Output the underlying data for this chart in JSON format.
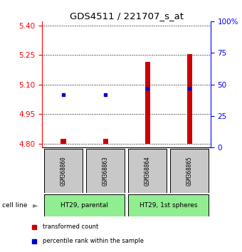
{
  "title": "GDS4511 / 221707_s_at",
  "samples": [
    "GSM368860",
    "GSM368863",
    "GSM368864",
    "GSM368865"
  ],
  "cell_lines": [
    {
      "label": "HT29, parental",
      "samples": [
        0,
        1
      ],
      "color": "#90EE90"
    },
    {
      "label": "HT29, 1st spheres",
      "samples": [
        2,
        3
      ],
      "color": "#90EE90"
    }
  ],
  "ylim_left": [
    4.78,
    5.42
  ],
  "ylim_right": [
    0,
    100
  ],
  "yticks_left": [
    4.8,
    4.95,
    5.1,
    5.25,
    5.4
  ],
  "yticks_right": [
    0,
    25,
    50,
    75,
    100
  ],
  "ytick_labels_right": [
    "0",
    "25",
    "50",
    "75",
    "100%"
  ],
  "transformed_count": {
    "bottoms": [
      4.8,
      4.8,
      4.8,
      4.8
    ],
    "tops": [
      4.825,
      4.825,
      5.215,
      5.255
    ],
    "color": "#CC0000"
  },
  "percentile_rank": {
    "values_pct": [
      42,
      42,
      47,
      47
    ],
    "color": "#0000CC"
  },
  "sample_box_color": "#C8C8C8",
  "legend_items": [
    {
      "label": "transformed count",
      "color": "#CC0000"
    },
    {
      "label": "percentile rank within the sample",
      "color": "#0000CC"
    }
  ],
  "cell_line_label": "cell line",
  "figsize": [
    3.4,
    3.54
  ],
  "dpi": 100
}
